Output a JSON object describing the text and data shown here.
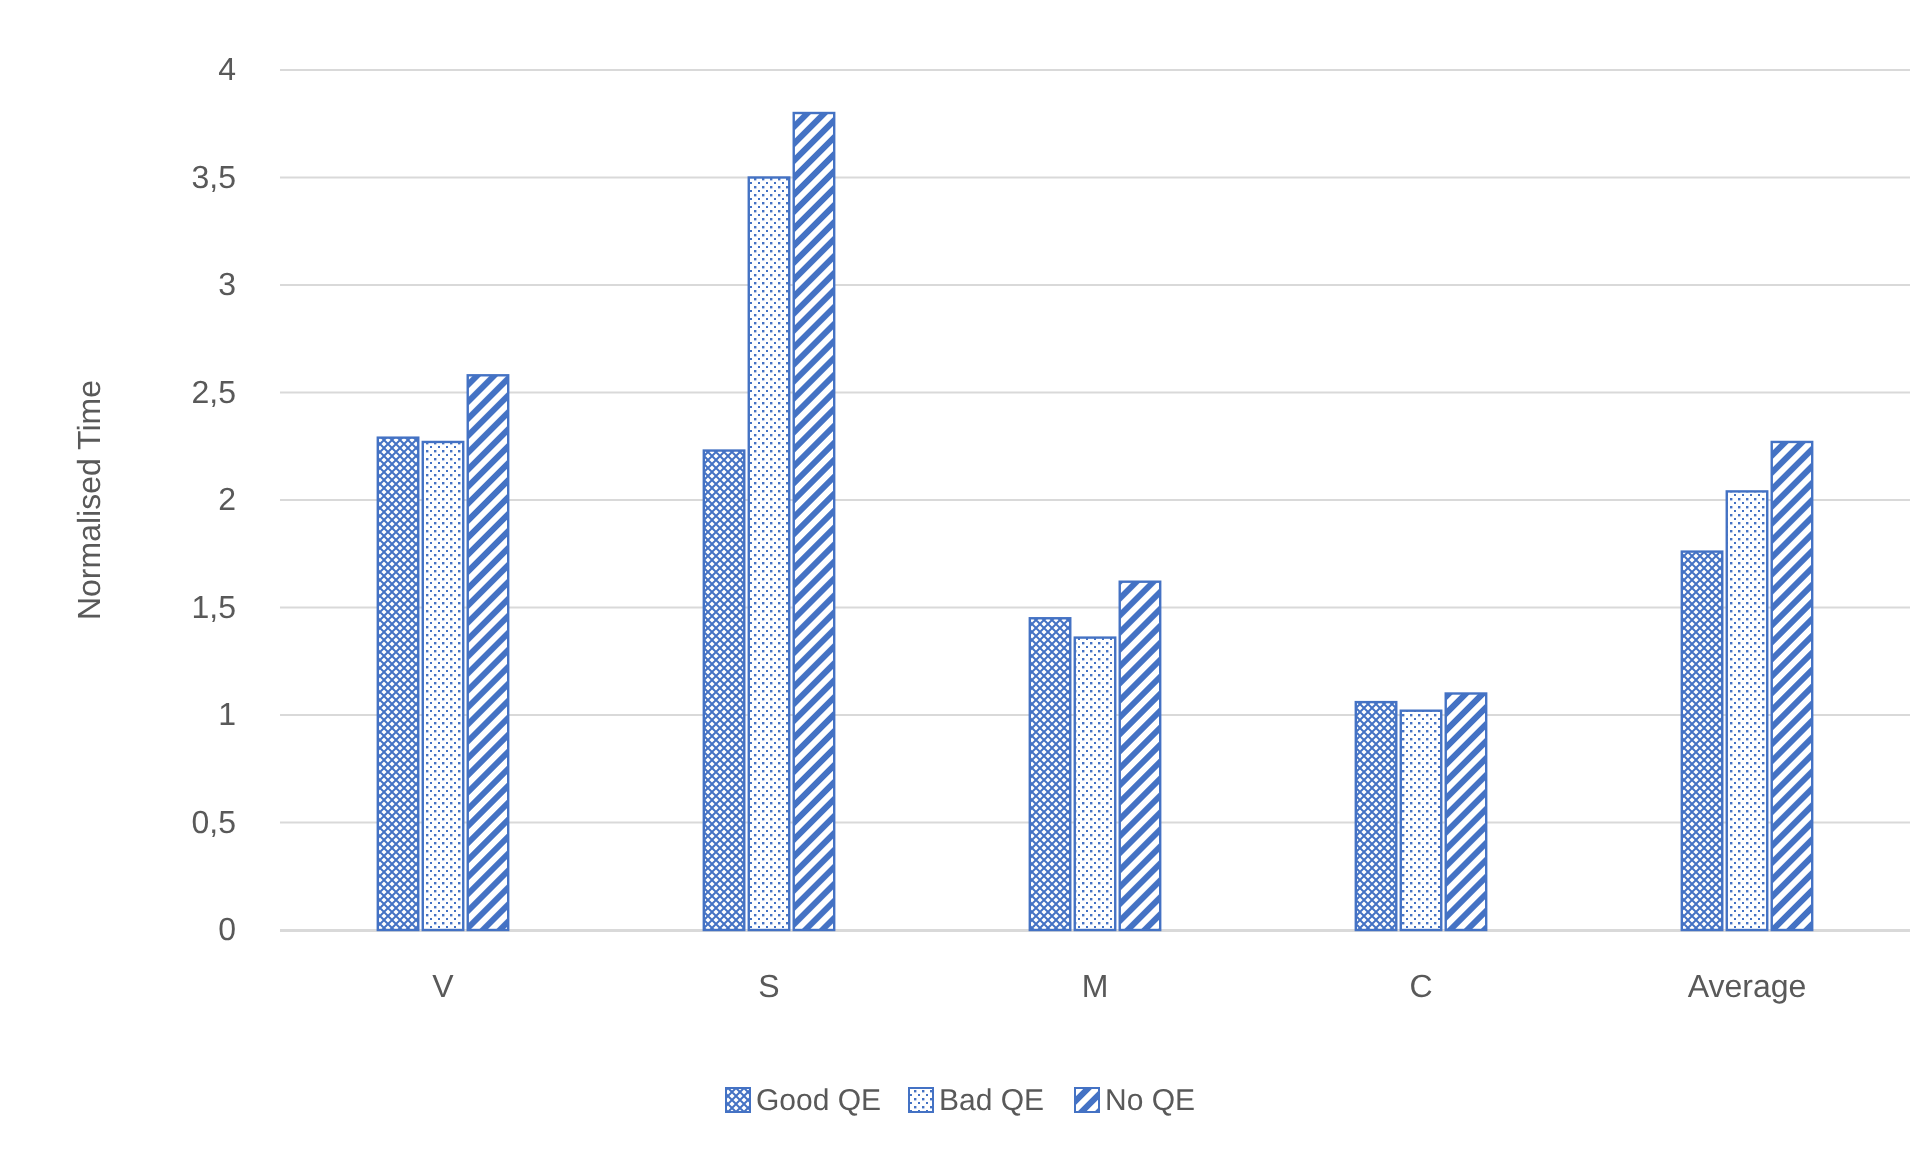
{
  "chart_data": {
    "type": "bar",
    "ylabel": "Normalised Time",
    "categories": [
      "V",
      "S",
      "M",
      "C",
      "Average"
    ],
    "series": [
      {
        "name": "Good QE",
        "color": "#4472c4",
        "values": [
          2.29,
          2.23,
          1.45,
          1.06,
          1.76
        ]
      },
      {
        "name": "Bad QE",
        "color": "#4472c4",
        "values": [
          2.27,
          3.5,
          1.36,
          1.02,
          2.04
        ]
      },
      {
        "name": "No QE",
        "color": "#4472c4",
        "values": [
          2.58,
          3.8,
          1.62,
          1.1,
          2.27
        ]
      }
    ],
    "ylim": [
      0,
      4
    ],
    "yticks": [
      0,
      {
        "value": 0.5,
        "label": "0,5"
      },
      1,
      {
        "value": 1.5,
        "label": "1,5"
      },
      2,
      {
        "value": 2.5,
        "label": "2,5"
      },
      3,
      {
        "value": 3.5,
        "label": "3,5"
      },
      4
    ],
    "grid": "y",
    "legend": "bottom"
  }
}
